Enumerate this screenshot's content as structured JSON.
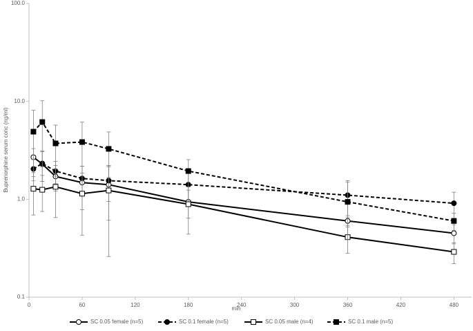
{
  "chart_data": {
    "type": "line",
    "x_label": "min",
    "y_label": "Buprenorphine serum conc (ng/ml)",
    "x": [
      5,
      15,
      30,
      60,
      90,
      180,
      360,
      480
    ],
    "xlim": [
      0,
      500
    ],
    "xticks": [
      0,
      60,
      120,
      180,
      240,
      300,
      360,
      420,
      480
    ],
    "ylim": [
      0.1,
      100
    ],
    "yticks": [
      {
        "value": 0.1,
        "label": "0.1"
      },
      {
        "value": 1,
        "label": "1.0"
      },
      {
        "value": 10,
        "label": "10.0"
      },
      {
        "value": 100,
        "label": "100.0"
      }
    ],
    "log_y": true,
    "grid": false,
    "legend": "bottom",
    "series": [
      {
        "name": "SC 0.05 female (n=5)",
        "color": "#000000",
        "marker": "circle",
        "marker_fill": "#ffffff",
        "dashed": false,
        "values": [
          2.69,
          2.29,
          1.71,
          1.48,
          1.41,
          0.94,
          0.6,
          0.45
        ],
        "errors": [
          0.6,
          0.77,
          0.5,
          0.7,
          0.8,
          0.3,
          0.08,
          0.1
        ]
      },
      {
        "name": "SC 0.1 female  (n=5)",
        "color": "#000000",
        "marker": "circle",
        "marker_fill": "#000000",
        "dashed": true,
        "values": [
          2.04,
          2.32,
          1.94,
          1.63,
          1.55,
          1.41,
          1.1,
          0.91
        ],
        "errors": [
          0.5,
          0.8,
          0.5,
          0.55,
          0.6,
          0.5,
          0.45,
          0.27
        ]
      },
      {
        "name": "SC 0.05 male  (n=4)",
        "color": "#000000",
        "marker": "square",
        "marker_fill": "#ffffff",
        "dashed": false,
        "values": [
          1.28,
          1.25,
          1.34,
          1.14,
          1.23,
          0.89,
          0.41,
          0.29
        ],
        "errors": [
          0.59,
          0.5,
          0.69,
          0.71,
          0.97,
          0.45,
          0.13,
          0.07
        ]
      },
      {
        "name": "SC 0.1 male  (n=5)",
        "color": "#000000",
        "marker": "square",
        "marker_fill": "#000000",
        "dashed": true,
        "values": [
          4.9,
          6.15,
          3.72,
          3.84,
          3.27,
          1.94,
          0.94,
          0.6
        ],
        "errors": [
          3.2,
          4.0,
          2.0,
          2.3,
          1.6,
          0.6,
          0.55,
          0.12
        ]
      }
    ]
  }
}
